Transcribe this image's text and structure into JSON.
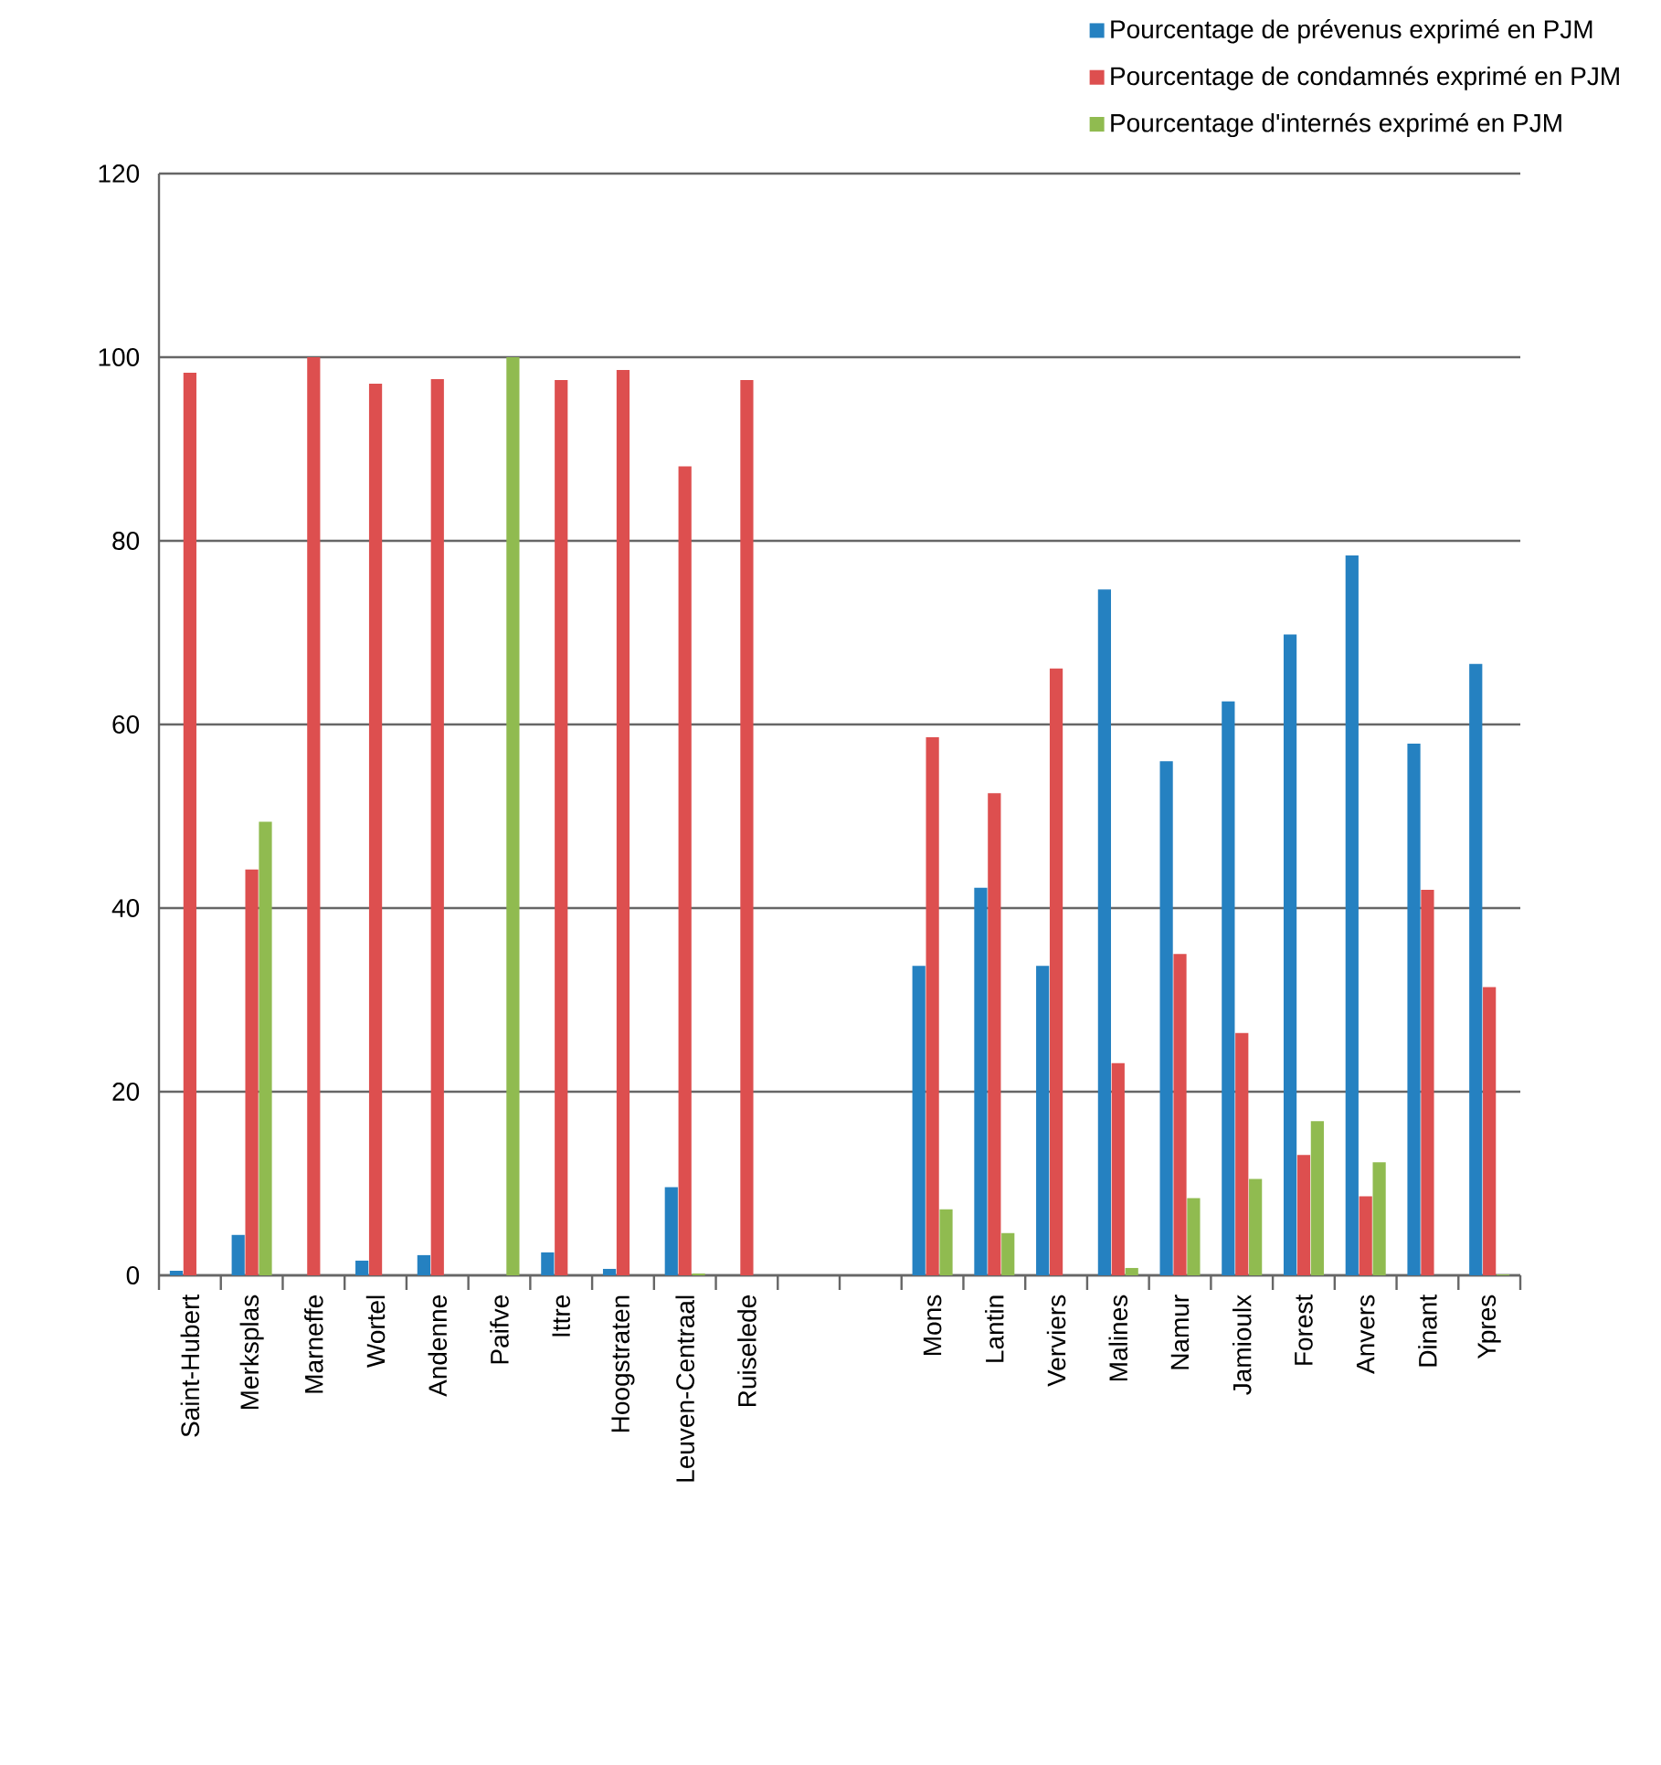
{
  "chart_data": {
    "type": "bar",
    "categories": [
      "Saint-Hubert",
      "Merksplas",
      "Marneffe",
      "Wortel",
      "Andenne",
      "Paifve",
      "Ittre",
      "Hoogstraten",
      "Leuven-Centraal",
      "Ruiselede",
      null,
      null,
      "Mons",
      "Lantin",
      "Verviers",
      "Malines",
      "Namur",
      "Jamioulx",
      "Forest",
      "Anvers",
      "Dinant",
      "Ypres"
    ],
    "series": [
      {
        "name": "Pourcentage de prévenus exprimé en PJM",
        "color": "#2581c1",
        "values": [
          0.5,
          4.4,
          null,
          1.6,
          2.2,
          null,
          2.5,
          0.7,
          9.6,
          null,
          null,
          null,
          33.7,
          42.2,
          33.7,
          74.7,
          56,
          62.5,
          69.8,
          78.4,
          57.9,
          66.6
        ]
      },
      {
        "name": "Pourcentage de condamnés exprimé en PJM",
        "color": "#dd4f4f",
        "values": [
          98.3,
          44.2,
          100,
          97.1,
          97.6,
          null,
          97.5,
          98.6,
          88.1,
          97.5,
          null,
          null,
          58.6,
          52.5,
          66.1,
          23.1,
          35,
          26.4,
          13.1,
          8.6,
          42,
          31.4
        ]
      },
      {
        "name": "Pourcentage d'internés exprimé en PJM",
        "color": "#90bb50",
        "values": [
          null,
          49.4,
          null,
          null,
          null,
          100,
          null,
          null,
          0.2,
          null,
          null,
          null,
          7.2,
          4.6,
          null,
          0.8,
          8.4,
          10.5,
          16.8,
          12.3,
          null,
          0.1
        ]
      }
    ],
    "ylim": [
      0,
      120
    ],
    "yticks": [
      0,
      20,
      40,
      60,
      80,
      100,
      120
    ],
    "grid": "y",
    "legend": "top"
  }
}
